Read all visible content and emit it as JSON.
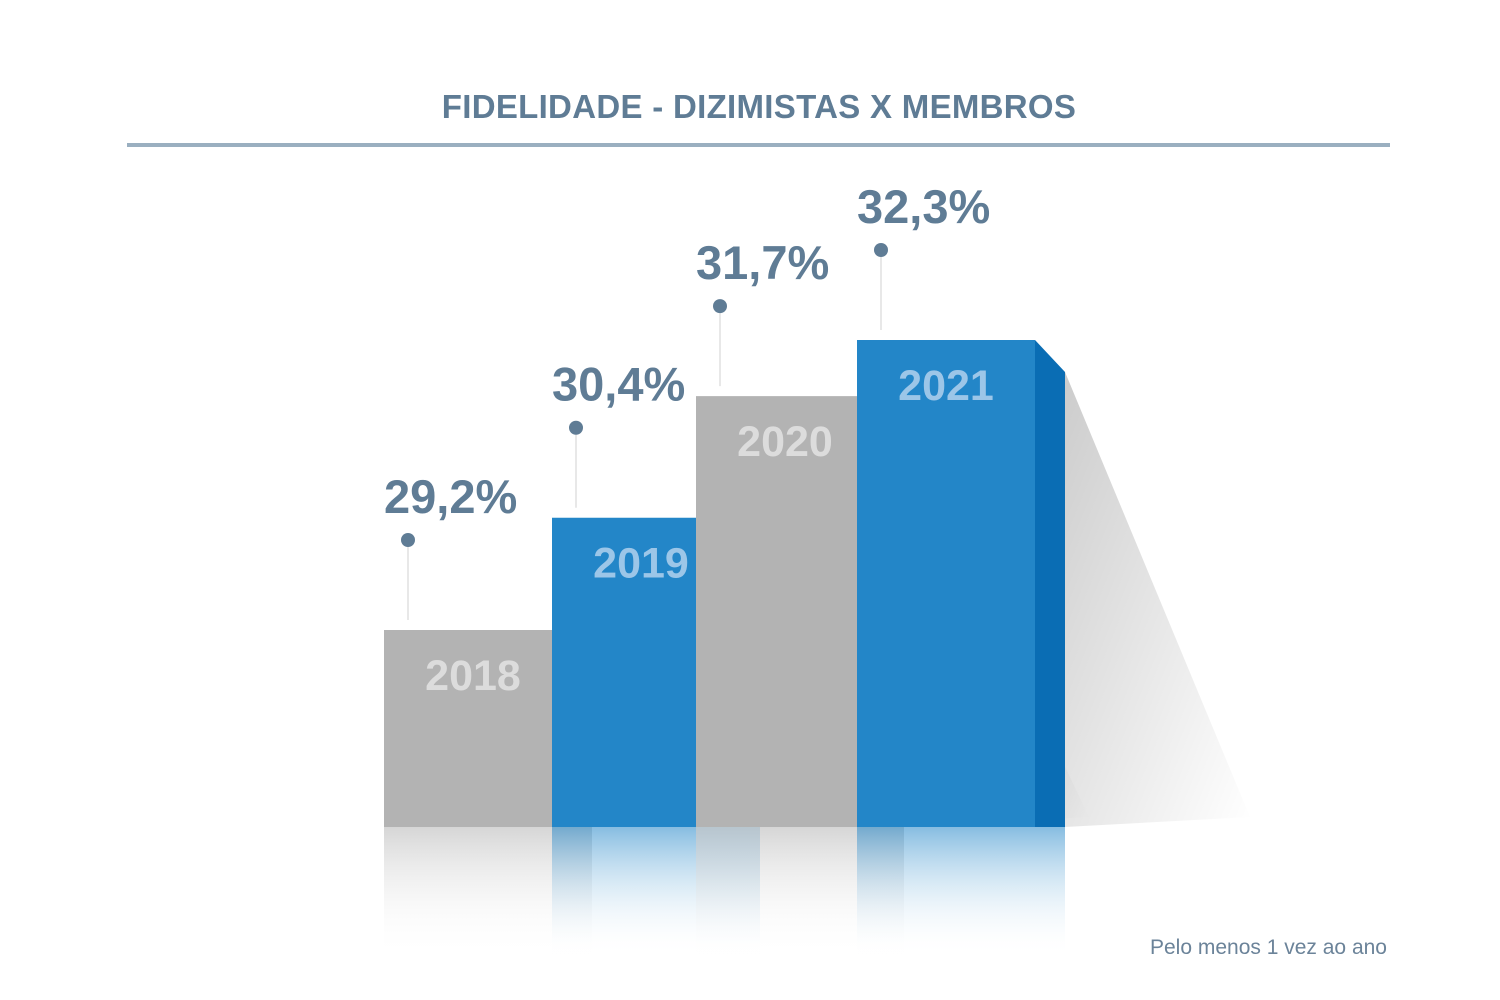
{
  "title": "FIDELIDADE - DIZIMISTAS X MEMBROS",
  "footnote": "Pelo menos 1 vez ao ano",
  "colors": {
    "title": "#5f7c95",
    "value_label": "#5f7c95",
    "year_label": "#dcdcdc",
    "year_label_blue": "#9cc6e8",
    "gray_front": "#b3b3b3",
    "gray_side": "#d3d3d3",
    "blue_front": "#2386c8",
    "blue_side": "#0a6db4"
  },
  "chart_data": {
    "type": "bar",
    "categories": [
      "2018",
      "2019",
      "2020",
      "2021"
    ],
    "values": [
      29.2,
      30.4,
      31.7,
      32.3
    ],
    "value_labels": [
      "29,2%",
      "30,4%",
      "31,7%",
      "32,3%"
    ],
    "bar_colors": [
      "gray",
      "blue",
      "gray",
      "blue"
    ],
    "unit": "%",
    "title": "FIDELIDADE - DIZIMISTAS X MEMBROS",
    "xlabel": "",
    "ylabel": "",
    "grid": false,
    "legend": "none"
  }
}
